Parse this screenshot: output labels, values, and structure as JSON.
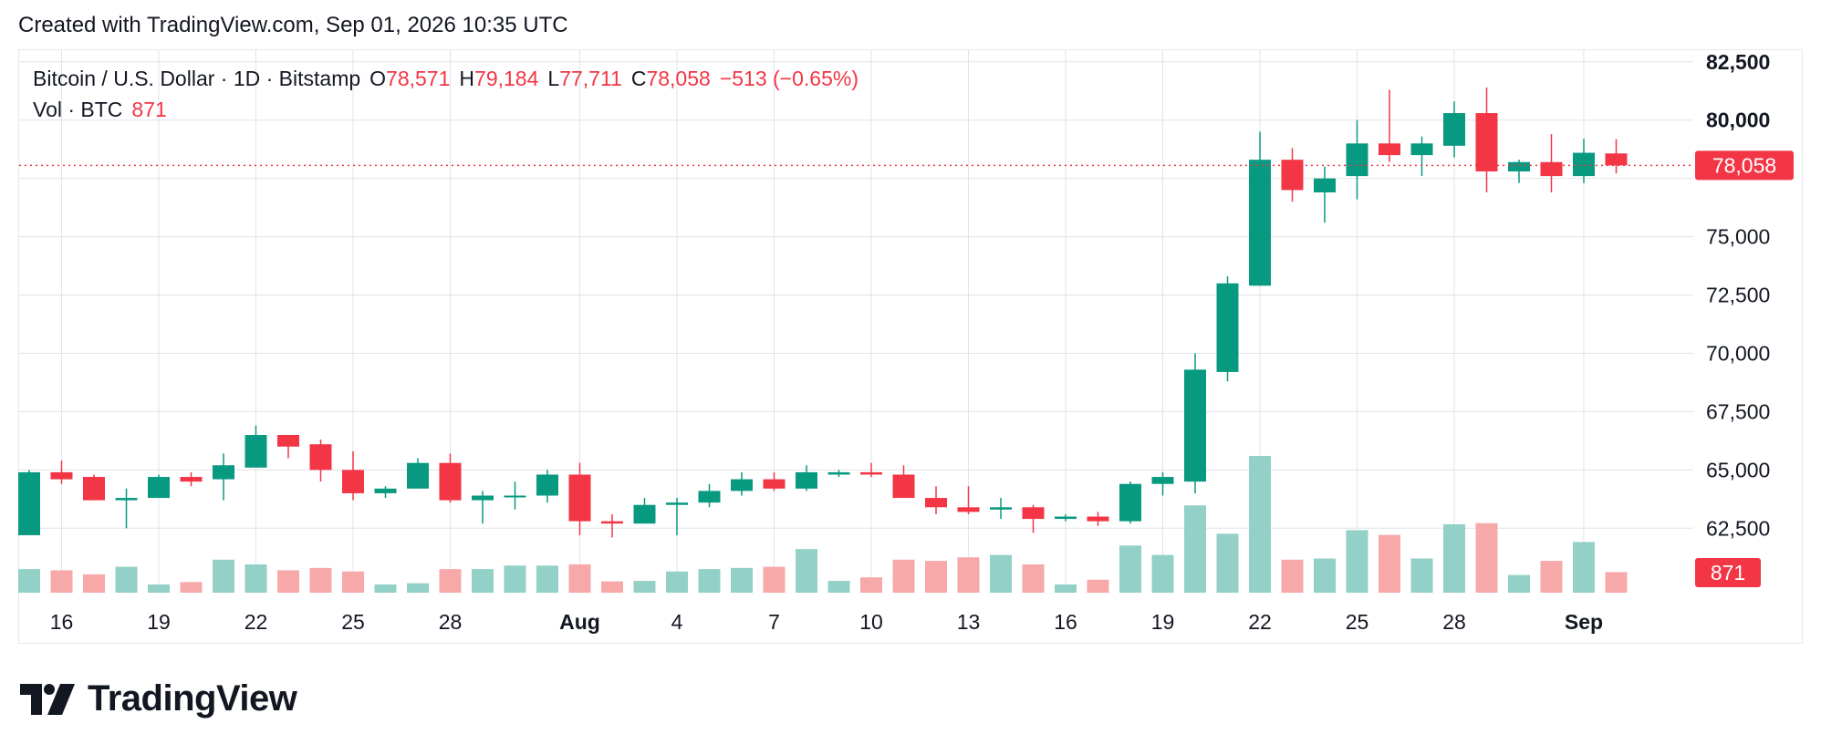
{
  "header": {
    "attribution": "Created with TradingView.com, Sep 01, 2026 10:35 UTC"
  },
  "legend": {
    "symbol": "Bitcoin / U.S. Dollar · 1D · Bitstamp",
    "open_label": "O",
    "open": "78,571",
    "high_label": "H",
    "high": "79,184",
    "low_label": "L",
    "low": "77,711",
    "close_label": "C",
    "close": "78,058",
    "change": "−513 (−0.65%)",
    "volume_label": "Vol · BTC",
    "volume": "871"
  },
  "brand": {
    "name": "TradingView",
    "logo_icon": "tradingview-logo-icon"
  },
  "colors": {
    "up": "#089981",
    "down": "#f23645",
    "up_volume": "#93d0c7",
    "down_volume": "#f7a9a9",
    "grid": "#e0e3eb"
  },
  "chart_data": {
    "type": "candlestick",
    "price_axis_ticks": [
      "62,500",
      "65,000",
      "67,500",
      "70,000",
      "72,500",
      "75,000",
      "80,000",
      "82,500"
    ],
    "price_axis_values": [
      62500,
      65000,
      67500,
      70000,
      72500,
      75000,
      77500,
      80000,
      82500
    ],
    "ylim": [
      61300,
      83000
    ],
    "last_price": 78058,
    "last_price_label": "78,058",
    "last_volume_label": "871",
    "x_ticks": [
      {
        "label": "16",
        "index": 1
      },
      {
        "label": "19",
        "index": 4
      },
      {
        "label": "22",
        "index": 7
      },
      {
        "label": "25",
        "index": 10
      },
      {
        "label": "28",
        "index": 13
      },
      {
        "label": "Aug",
        "index": 17
      },
      {
        "label": "4",
        "index": 20
      },
      {
        "label": "7",
        "index": 23
      },
      {
        "label": "10",
        "index": 26
      },
      {
        "label": "13",
        "index": 29
      },
      {
        "label": "16",
        "index": 32
      },
      {
        "label": "19",
        "index": 35
      },
      {
        "label": "22",
        "index": 38
      },
      {
        "label": "25",
        "index": 41
      },
      {
        "label": "28",
        "index": 44
      },
      {
        "label": "Sep",
        "index": 48
      }
    ],
    "candles": [
      {
        "date": "Jul 15",
        "open": 62200,
        "high": 65000,
        "low": 62200,
        "close": 64900,
        "volume": 1000
      },
      {
        "date": "Jul 16",
        "open": 64900,
        "high": 65400,
        "low": 64400,
        "close": 64600,
        "volume": 950
      },
      {
        "date": "Jul 17",
        "open": 64700,
        "high": 64800,
        "low": 63700,
        "close": 63700,
        "volume": 780
      },
      {
        "date": "Jul 18",
        "open": 63700,
        "high": 64200,
        "low": 62500,
        "close": 63800,
        "volume": 1100
      },
      {
        "date": "Jul 19",
        "open": 63800,
        "high": 64800,
        "low": 63800,
        "close": 64700,
        "volume": 350
      },
      {
        "date": "Jul 20",
        "open": 64700,
        "high": 64900,
        "low": 64300,
        "close": 64500,
        "volume": 450
      },
      {
        "date": "Jul 21",
        "open": 64600,
        "high": 65700,
        "low": 63700,
        "close": 65200,
        "volume": 1400
      },
      {
        "date": "Jul 22",
        "open": 65100,
        "high": 66900,
        "low": 65100,
        "close": 66500,
        "volume": 1200
      },
      {
        "date": "Jul 23",
        "open": 66500,
        "high": 66500,
        "low": 65500,
        "close": 66000,
        "volume": 950
      },
      {
        "date": "Jul 24",
        "open": 66100,
        "high": 66300,
        "low": 64500,
        "close": 65000,
        "volume": 1050
      },
      {
        "date": "Jul 25",
        "open": 65000,
        "high": 65800,
        "low": 63700,
        "close": 64000,
        "volume": 900
      },
      {
        "date": "Jul 26",
        "open": 64000,
        "high": 64300,
        "low": 63800,
        "close": 64200,
        "volume": 350
      },
      {
        "date": "Jul 27",
        "open": 64200,
        "high": 65500,
        "low": 64200,
        "close": 65300,
        "volume": 400
      },
      {
        "date": "Jul 28",
        "open": 65300,
        "high": 65700,
        "low": 63600,
        "close": 63700,
        "volume": 1000
      },
      {
        "date": "Jul 29",
        "open": 63700,
        "high": 64100,
        "low": 62700,
        "close": 63900,
        "volume": 1000
      },
      {
        "date": "Jul 30",
        "open": 63900,
        "high": 64500,
        "low": 63300,
        "close": 63900,
        "volume": 1150
      },
      {
        "date": "Jul 31",
        "open": 63900,
        "high": 65000,
        "low": 63600,
        "close": 64800,
        "volume": 1150
      },
      {
        "date": "Aug 1",
        "open": 64800,
        "high": 65300,
        "low": 62200,
        "close": 62800,
        "volume": 1200
      },
      {
        "date": "Aug 2",
        "open": 62800,
        "high": 63100,
        "low": 62100,
        "close": 62700,
        "volume": 480
      },
      {
        "date": "Aug 3",
        "open": 62700,
        "high": 63800,
        "low": 62700,
        "close": 63500,
        "volume": 500
      },
      {
        "date": "Aug 4",
        "open": 63500,
        "high": 63800,
        "low": 62200,
        "close": 63600,
        "volume": 900
      },
      {
        "date": "Aug 5",
        "open": 63600,
        "high": 64400,
        "low": 63400,
        "close": 64100,
        "volume": 1000
      },
      {
        "date": "Aug 6",
        "open": 64100,
        "high": 64900,
        "low": 63900,
        "close": 64600,
        "volume": 1050
      },
      {
        "date": "Aug 7",
        "open": 64600,
        "high": 64900,
        "low": 64100,
        "close": 64200,
        "volume": 1100
      },
      {
        "date": "Aug 8",
        "open": 64200,
        "high": 65200,
        "low": 64100,
        "close": 64900,
        "volume": 1850
      },
      {
        "date": "Aug 9",
        "open": 64800,
        "high": 65000,
        "low": 64700,
        "close": 64900,
        "volume": 500
      },
      {
        "date": "Aug 10",
        "open": 64900,
        "high": 65300,
        "low": 64700,
        "close": 64800,
        "volume": 650
      },
      {
        "date": "Aug 11",
        "open": 64800,
        "high": 65200,
        "low": 63800,
        "close": 63800,
        "volume": 1400
      },
      {
        "date": "Aug 12",
        "open": 63800,
        "high": 64300,
        "low": 63100,
        "close": 63400,
        "volume": 1350
      },
      {
        "date": "Aug 13",
        "open": 63400,
        "high": 64300,
        "low": 63100,
        "close": 63200,
        "volume": 1500
      },
      {
        "date": "Aug 14",
        "open": 63300,
        "high": 63800,
        "low": 62900,
        "close": 63400,
        "volume": 1600
      },
      {
        "date": "Aug 15",
        "open": 63400,
        "high": 63500,
        "low": 62300,
        "close": 62900,
        "volume": 1200
      },
      {
        "date": "Aug 16",
        "open": 62900,
        "high": 63100,
        "low": 62800,
        "close": 63000,
        "volume": 350
      },
      {
        "date": "Aug 17",
        "open": 63000,
        "high": 63200,
        "low": 62600,
        "close": 62800,
        "volume": 550
      },
      {
        "date": "Aug 18",
        "open": 62800,
        "high": 64500,
        "low": 62700,
        "close": 64400,
        "volume": 2000
      },
      {
        "date": "Aug 19",
        "open": 64400,
        "high": 64900,
        "low": 63900,
        "close": 64700,
        "volume": 1600
      },
      {
        "date": "Aug 20",
        "open": 64500,
        "high": 70000,
        "low": 64000,
        "close": 69300,
        "volume": 3700
      },
      {
        "date": "Aug 21",
        "open": 69200,
        "high": 73300,
        "low": 68800,
        "close": 73000,
        "volume": 2500
      },
      {
        "date": "Aug 22",
        "open": 72900,
        "high": 79500,
        "low": 72900,
        "close": 78300,
        "volume": 5800
      },
      {
        "date": "Aug 23",
        "open": 78300,
        "high": 78800,
        "low": 76500,
        "close": 77000,
        "volume": 1400
      },
      {
        "date": "Aug 24",
        "open": 76900,
        "high": 78000,
        "low": 75600,
        "close": 77500,
        "volume": 1450
      },
      {
        "date": "Aug 25",
        "open": 77600,
        "high": 80000,
        "low": 76600,
        "close": 79000,
        "volume": 2650
      },
      {
        "date": "Aug 26",
        "open": 79000,
        "high": 81300,
        "low": 78200,
        "close": 78500,
        "volume": 2450
      },
      {
        "date": "Aug 27",
        "open": 78500,
        "high": 79300,
        "low": 77600,
        "close": 79000,
        "volume": 1450
      },
      {
        "date": "Aug 28",
        "open": 78900,
        "high": 80800,
        "low": 78400,
        "close": 80300,
        "volume": 2900
      },
      {
        "date": "Aug 29",
        "open": 80300,
        "high": 81400,
        "low": 76900,
        "close": 77800,
        "volume": 2950
      },
      {
        "date": "Aug 30",
        "open": 77800,
        "high": 78300,
        "low": 77300,
        "close": 78200,
        "volume": 750
      },
      {
        "date": "Aug 31",
        "open": 78200,
        "high": 79400,
        "low": 76900,
        "close": 77600,
        "volume": 1350
      },
      {
        "date": "Sep 1",
        "open": 77600,
        "high": 79200,
        "low": 77300,
        "close": 78600,
        "volume": 2150
      },
      {
        "date": "Sep 2",
        "open": 78571,
        "high": 79184,
        "low": 77711,
        "close": 78058,
        "volume": 871
      }
    ]
  }
}
